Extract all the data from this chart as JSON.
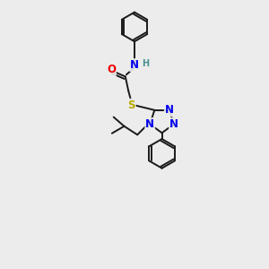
{
  "background_color": "#ececec",
  "bond_color": "#1a1a1a",
  "N_color": "#0000ee",
  "O_color": "#ee0000",
  "S_color": "#bbaa00",
  "H_color": "#4a9090",
  "lw": 1.4,
  "fs": 8.5,
  "fss": 7.0,
  "xlim": [
    0,
    10
  ],
  "ylim": [
    0,
    13
  ],
  "figsize": [
    3.0,
    3.0
  ],
  "dpi": 100
}
